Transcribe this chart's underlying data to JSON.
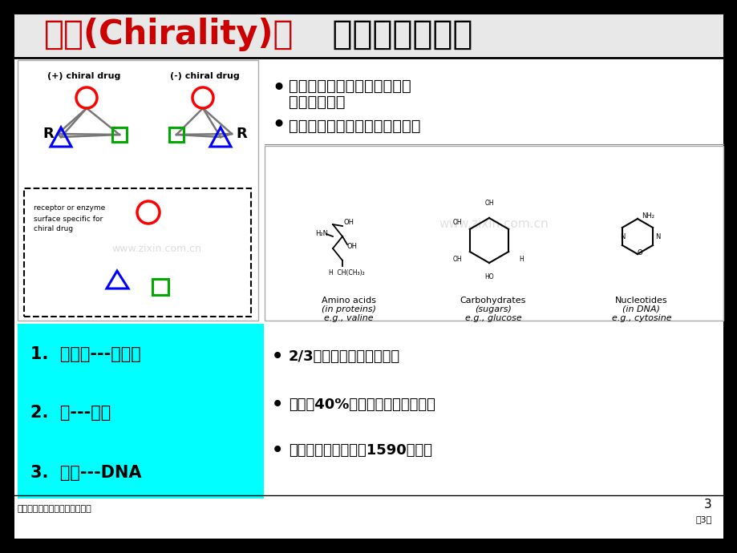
{
  "bg_color": "#000000",
  "slide_bg": "#ffffff",
  "title_text1": "手性(Chirality)：",
  "title_text2": " 自然界基本属性",
  "title_color1": "#cc0000",
  "title_color2": "#000000",
  "bullet1_line1": "组成生命活动基本化学物质是",
  "bullet1_line2": "手性化合物！",
  "bullet2": "手性药品：一把钥匙开一把锁！",
  "cyan_color": "#00ffff",
  "cyan_items": [
    "1.  氨基酸---蛋白质",
    "2.  糖---多糖",
    "3.  核酸---DNA"
  ],
  "bottom_bullets": [
    "2/3以上开发中药品为手性",
    "市场上40%手性药品为单一异构体",
    "年全球手性药品市场1590亿美元"
  ],
  "chem_labels": [
    [
      "Amino acids",
      "(in proteins)",
      "e.g., valine"
    ],
    [
      "Carbohydrates",
      "(sugars)",
      "e.g., glucose"
    ],
    [
      "Nucleotides",
      "(in DNA)",
      "e.g., cytosine"
    ]
  ],
  "footer_left": "生物技术制药酶工程和手性药物",
  "footer_right": "第3页",
  "page_num": "3",
  "watermark": "www.zixin.com.cn"
}
